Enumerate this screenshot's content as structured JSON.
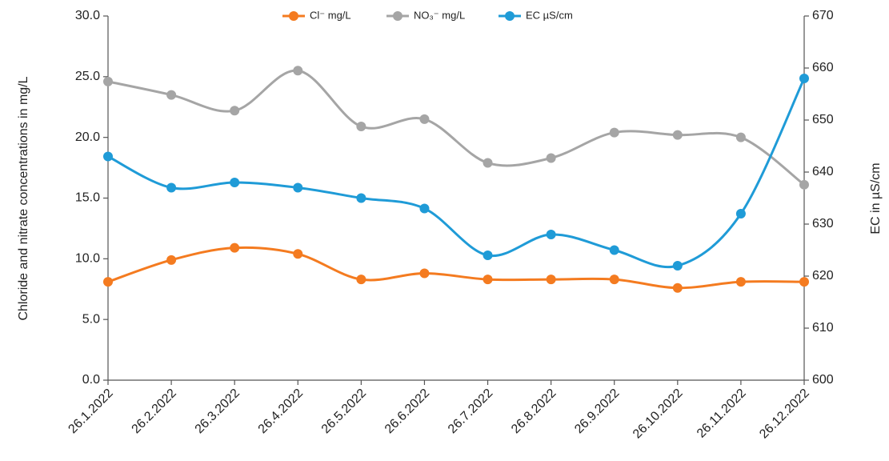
{
  "chart_data": {
    "type": "line",
    "categories": [
      "26.1.2022",
      "26.2.2022",
      "26.3.2022",
      "26.4.2022",
      "26.5.2022",
      "26.6.2022",
      "26.7.2022",
      "26.8.2022",
      "26.9.2022",
      "26.10.2022",
      "26.11.2022",
      "26.12.2022"
    ],
    "series": [
      {
        "name": "Cl⁻ mg/L",
        "color": "#f47b20",
        "values": [
          8.1,
          9.9,
          10.9,
          10.4,
          8.3,
          8.8,
          8.3,
          8.3,
          8.3,
          7.6,
          8.1,
          8.1
        ]
      },
      {
        "name": "NO₃⁻ mg/L",
        "color": "#a5a5a5",
        "values": [
          24.6,
          23.5,
          22.2,
          25.5,
          20.9,
          21.5,
          17.9,
          18.3,
          20.4,
          20.2,
          20.0,
          16.1
        ]
      },
      {
        "name": "EC µS/cm",
        "color": "#1f9bd7",
        "axis": "y2",
        "values": [
          643,
          637,
          638,
          637,
          635,
          633,
          624,
          628,
          625,
          622,
          632,
          658
        ]
      }
    ],
    "ylabel": "Chloride and nitrate concentrations in mg/L",
    "y2label": "EC in µS/cm",
    "ylim": [
      0,
      30
    ],
    "yticks": [
      {
        "value": 0,
        "label": "0.0"
      },
      {
        "value": 5,
        "label": "5.0"
      },
      {
        "value": 10,
        "label": "10.0"
      },
      {
        "value": 15,
        "label": "15.0"
      },
      {
        "value": 20,
        "label": "20.0"
      },
      {
        "value": 25,
        "label": "25.0"
      },
      {
        "value": 30,
        "label": "30.0"
      }
    ],
    "y2lim": [
      600,
      670
    ],
    "y2ticks": [
      600,
      610,
      620,
      630,
      640,
      650,
      660,
      670
    ],
    "legend": "top"
  }
}
